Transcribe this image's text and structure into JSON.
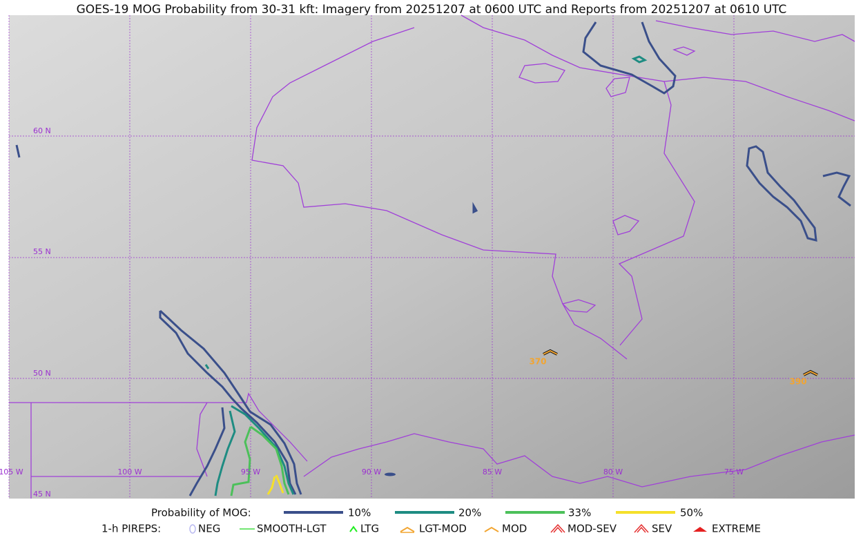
{
  "title": "GOES-19 MOG Probability from 30-31 kft: Imagery from 20251207 at 0600 UTC and Reports from 20251207 at 0610 UTC",
  "map": {
    "latitude_labels": [
      "60 N",
      "55 N",
      "50 N",
      "45 N"
    ],
    "longitude_labels": [
      "105 W",
      "100 W",
      "95 W",
      "90 W",
      "85 W",
      "80 W",
      "75 W"
    ],
    "pirep_labels": [
      "370",
      "390"
    ]
  },
  "legend": {
    "probability": {
      "title": "Probability of MOG:",
      "items": [
        "10%",
        "20%",
        "33%",
        "50%"
      ]
    },
    "pireps": {
      "title": "1-h PIREPS:",
      "items": [
        "NEG",
        "SMOOTH-LGT",
        "LTG",
        "LGT-MOD",
        "MOD",
        "MOD-SEV",
        "SEV",
        "EXTREME"
      ]
    }
  }
}
